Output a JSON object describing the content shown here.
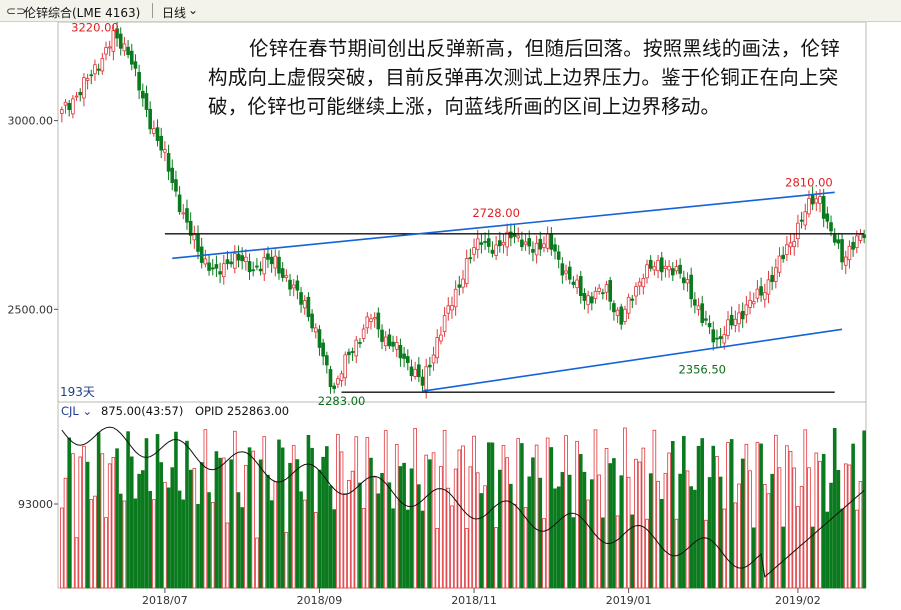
{
  "header": {
    "link_icon": "link-chain-icon",
    "symbol": "伦锌综合(LME 4163)",
    "period": "日线",
    "period_chevron": "chevron-down-icon"
  },
  "annotation": "伦锌在春节期间创出反弹新高，但随后回落。按照黑线的画法，伦锌构成向上虚假突破，目前反弹再次测试上边界压力。鉴于伦铜正在向上突破，伦锌也可能继续上涨，向蓝线所画的区间上边界移动。",
  "indicator": {
    "name": "CJL",
    "value_text": "875.00(43:57)",
    "opid_text": "OPID 252863.00"
  },
  "colors": {
    "up": "#e0373c",
    "down": "#0b7a1e",
    "trend": "#1463d8",
    "level": "#111111",
    "label": "#e02020",
    "low_label": "#0e6e1e",
    "axis": "#555555"
  },
  "chart_data": [
    {
      "type": "candlestick",
      "title": "",
      "y_ticks": [
        3000.0,
        2500.0
      ],
      "ylim": [
        2265,
        3240
      ],
      "x_ticks": [
        "2018/07",
        "2018/09",
        "2018/11",
        "2019/01",
        "2019/02"
      ],
      "bars_count_label": "193天",
      "annotations": [
        {
          "label": "3220.00",
          "kind": "high"
        },
        {
          "label": "2728.00",
          "kind": "high"
        },
        {
          "label": "2810.00",
          "kind": "high"
        },
        {
          "label": "2283.00",
          "kind": "low"
        },
        {
          "label": "2356.50",
          "kind": "low"
        }
      ],
      "anchors": [
        [
          0,
          3020
        ],
        [
          8,
          3120
        ],
        [
          14,
          3220
        ],
        [
          18,
          3190
        ],
        [
          22,
          3050
        ],
        [
          28,
          2900
        ],
        [
          34,
          2720
        ],
        [
          38,
          2640
        ],
        [
          42,
          2590
        ],
        [
          46,
          2640
        ],
        [
          52,
          2610
        ],
        [
          58,
          2630
        ],
        [
          62,
          2560
        ],
        [
          66,
          2520
        ],
        [
          70,
          2400
        ],
        [
          74,
          2290
        ],
        [
          78,
          2380
        ],
        [
          84,
          2480
        ],
        [
          88,
          2420
        ],
        [
          94,
          2360
        ],
        [
          98,
          2300
        ],
        [
          102,
          2420
        ],
        [
          106,
          2520
        ],
        [
          110,
          2620
        ],
        [
          114,
          2690
        ],
        [
          118,
          2650
        ],
        [
          122,
          2710
        ],
        [
          126,
          2660
        ],
        [
          132,
          2680
        ],
        [
          138,
          2580
        ],
        [
          142,
          2530
        ],
        [
          148,
          2550
        ],
        [
          152,
          2470
        ],
        [
          158,
          2600
        ],
        [
          164,
          2620
        ],
        [
          170,
          2570
        ],
        [
          174,
          2470
        ],
        [
          178,
          2420
        ],
        [
          182,
          2460
        ],
        [
          186,
          2510
        ],
        [
          190,
          2540
        ],
        [
          196,
          2640
        ],
        [
          200,
          2720
        ],
        [
          204,
          2790
        ],
        [
          206,
          2800
        ],
        [
          208,
          2720
        ],
        [
          212,
          2640
        ],
        [
          216,
          2680
        ],
        [
          218,
          2690
        ]
      ],
      "lines": [
        {
          "kind": "resistance-black",
          "y_value": 2700.0
        },
        {
          "kind": "support-black",
          "y_value": 2283.0
        },
        {
          "kind": "upper-trend-blue",
          "from": [
            30,
            2635
          ],
          "to": [
            210,
            2810
          ]
        },
        {
          "kind": "lower-trend-blue",
          "from": [
            98,
            2283
          ],
          "to": [
            212,
            2447
          ]
        }
      ]
    },
    {
      "type": "volume-bar",
      "y_ticks": [
        93000
      ],
      "note": "oscillating volume bars with open-interest line"
    }
  ]
}
